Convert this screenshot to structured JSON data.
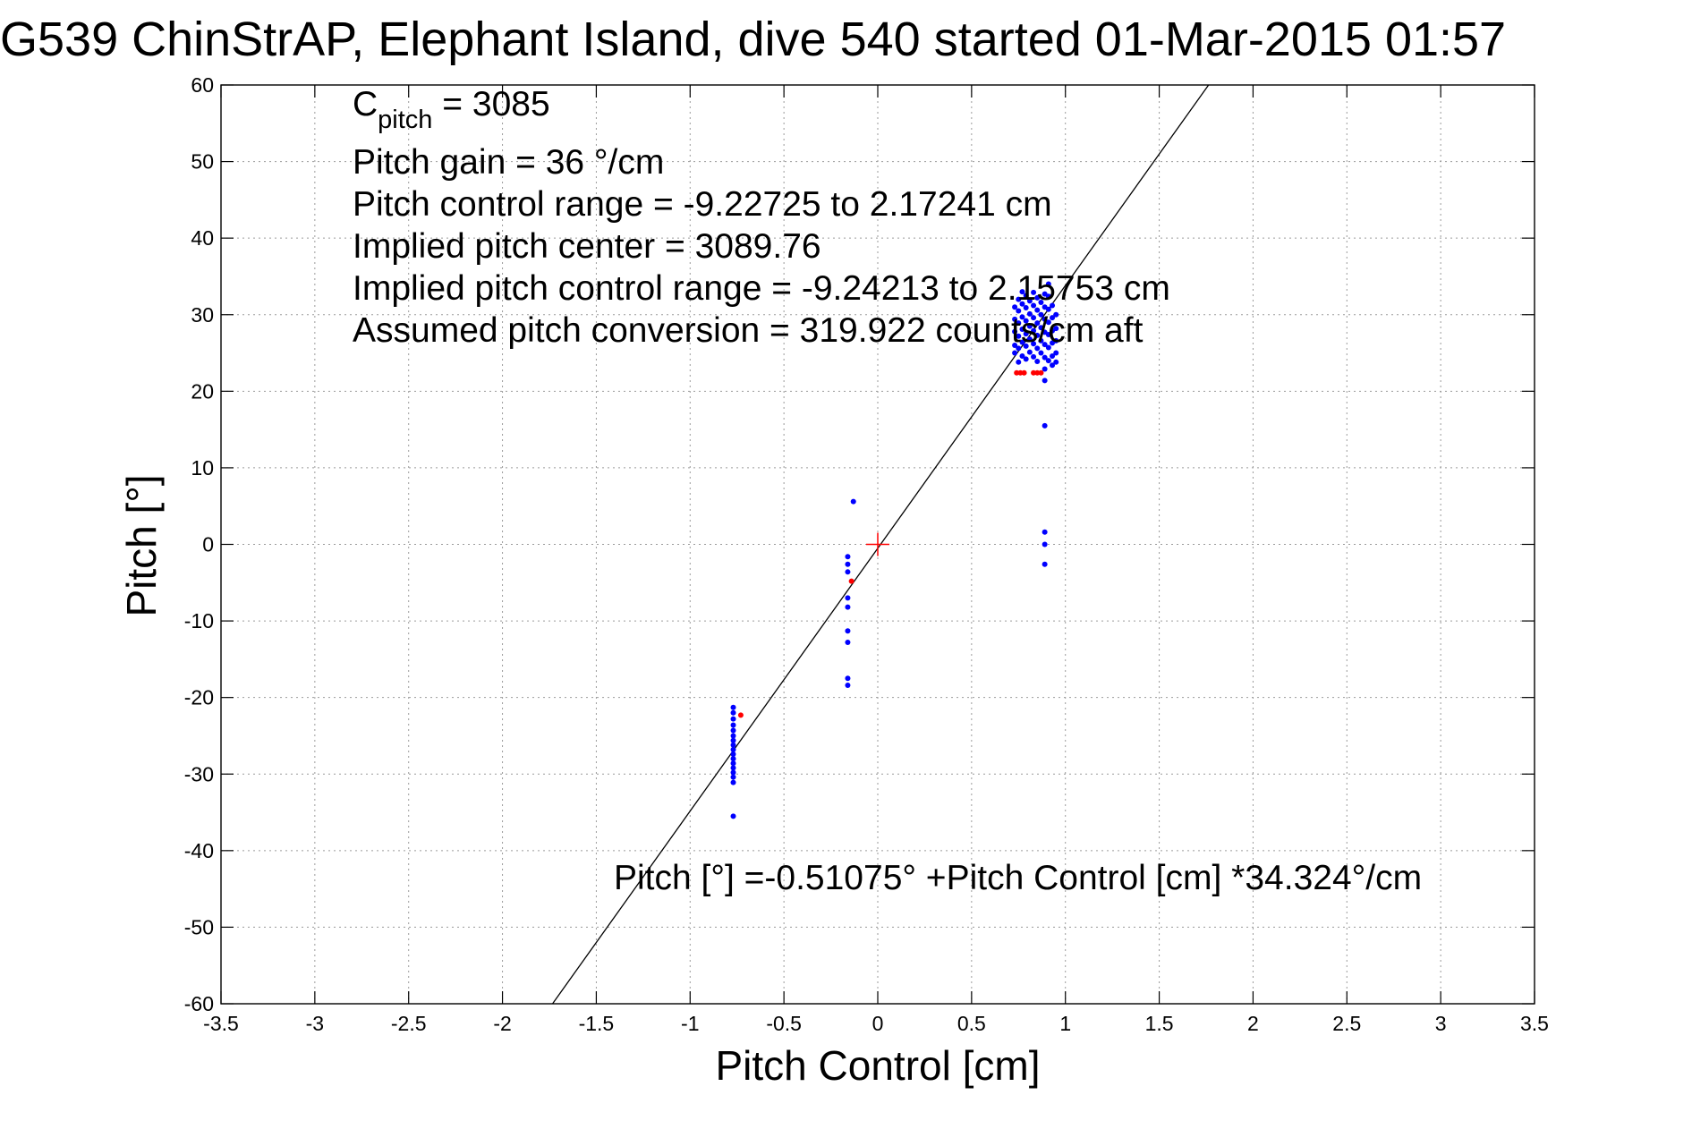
{
  "chart_data": {
    "type": "scatter",
    "title": "G539 ChinStrAP, Elephant Island, dive 540 started 01-Mar-2015 01:57",
    "xlabel": "Pitch Control [cm]",
    "ylabel": "Pitch [°]",
    "xlim": [
      -3.5,
      3.5
    ],
    "ylim": [
      -60,
      60
    ],
    "xticks": [
      -3.5,
      -3,
      -2.5,
      -2,
      -1.5,
      -1,
      -0.5,
      0,
      0.5,
      1,
      1.5,
      2,
      2.5,
      3,
      3.5
    ],
    "yticks": [
      -60,
      -50,
      -40,
      -30,
      -20,
      -10,
      0,
      10,
      20,
      30,
      40,
      50,
      60
    ],
    "grid": true,
    "annotations": {
      "c_pitch_main": "C",
      "c_pitch_sub": "pitch",
      "c_pitch_value": " = 3085",
      "pitch_gain": "Pitch gain = 36 °/cm",
      "control_range": "Pitch control range = -9.22725 to 2.17241 cm",
      "implied_center": "Implied pitch center = 3089.76",
      "implied_range": "Implied pitch control range = -9.24213 to 2.15753 cm",
      "assumed_conversion": "Assumed pitch conversion = 319.922 counts/cm aft",
      "fit_equation": "Pitch [°] =-0.51075° +Pitch Control [cm] *34.324°/cm"
    },
    "fit_line": {
      "intercept": -0.51075,
      "slope": 34.324,
      "color": "#000000"
    },
    "center_marker": {
      "x": 0,
      "y": 0,
      "color": "#ff0000"
    },
    "series": [
      {
        "color": "#0000ff",
        "points": [
          [
            -0.77,
            -21.3
          ],
          [
            -0.77,
            -22.0
          ],
          [
            -0.77,
            -22.8
          ],
          [
            -0.77,
            -23.6
          ],
          [
            -0.77,
            -24.3
          ],
          [
            -0.77,
            -25.0
          ],
          [
            -0.77,
            -25.6
          ],
          [
            -0.77,
            -26.2
          ],
          [
            -0.77,
            -26.8
          ],
          [
            -0.77,
            -27.4
          ],
          [
            -0.77,
            -28.0
          ],
          [
            -0.77,
            -28.6
          ],
          [
            -0.77,
            -29.2
          ],
          [
            -0.77,
            -29.8
          ],
          [
            -0.77,
            -30.4
          ],
          [
            -0.77,
            -31.1
          ],
          [
            -0.77,
            -35.5
          ],
          [
            -0.16,
            -1.6
          ],
          [
            -0.16,
            -2.6
          ],
          [
            -0.16,
            -3.6
          ],
          [
            -0.16,
            -7.0
          ],
          [
            -0.16,
            -8.2
          ],
          [
            -0.16,
            -11.3
          ],
          [
            -0.16,
            -12.8
          ],
          [
            -0.16,
            -17.5
          ],
          [
            -0.16,
            -18.4
          ],
          [
            -0.13,
            5.6
          ],
          [
            0.89,
            15.5
          ],
          [
            0.89,
            1.6
          ],
          [
            0.89,
            0.0
          ],
          [
            0.89,
            -2.6
          ],
          [
            0.89,
            21.4
          ],
          [
            0.73,
            31.0
          ],
          [
            0.73,
            29.4
          ],
          [
            0.73,
            27.8
          ],
          [
            0.73,
            26.0
          ],
          [
            0.73,
            25.0
          ],
          [
            0.75,
            32.0
          ],
          [
            0.75,
            30.5
          ],
          [
            0.75,
            28.9
          ],
          [
            0.75,
            27.2
          ],
          [
            0.75,
            25.6
          ],
          [
            0.75,
            23.8
          ],
          [
            0.77,
            33.0
          ],
          [
            0.77,
            31.4
          ],
          [
            0.77,
            29.7
          ],
          [
            0.77,
            28.1
          ],
          [
            0.77,
            26.4
          ],
          [
            0.77,
            24.6
          ],
          [
            0.79,
            32.5
          ],
          [
            0.79,
            30.9
          ],
          [
            0.79,
            29.2
          ],
          [
            0.79,
            27.5
          ],
          [
            0.79,
            25.9
          ],
          [
            0.79,
            24.2
          ],
          [
            0.81,
            31.8
          ],
          [
            0.81,
            30.1
          ],
          [
            0.81,
            28.5
          ],
          [
            0.81,
            26.8
          ],
          [
            0.81,
            25.1
          ],
          [
            0.83,
            32.9
          ],
          [
            0.83,
            31.2
          ],
          [
            0.83,
            29.6
          ],
          [
            0.83,
            27.9
          ],
          [
            0.83,
            26.2
          ],
          [
            0.83,
            24.5
          ],
          [
            0.85,
            32.2
          ],
          [
            0.85,
            30.6
          ],
          [
            0.85,
            28.9
          ],
          [
            0.85,
            27.3
          ],
          [
            0.85,
            25.6
          ],
          [
            0.85,
            23.9
          ],
          [
            0.87,
            31.6
          ],
          [
            0.87,
            30.0
          ],
          [
            0.87,
            28.3
          ],
          [
            0.87,
            26.6
          ],
          [
            0.87,
            25.0
          ],
          [
            0.89,
            32.7
          ],
          [
            0.89,
            31.0
          ],
          [
            0.89,
            29.4
          ],
          [
            0.89,
            27.7
          ],
          [
            0.89,
            26.1
          ],
          [
            0.89,
            24.4
          ],
          [
            0.89,
            22.9
          ],
          [
            0.91,
            34.0
          ],
          [
            0.91,
            32.4
          ],
          [
            0.91,
            30.7
          ],
          [
            0.91,
            29.0
          ],
          [
            0.91,
            27.4
          ],
          [
            0.91,
            25.7
          ],
          [
            0.91,
            24.0
          ],
          [
            0.93,
            31.2
          ],
          [
            0.93,
            29.6
          ],
          [
            0.93,
            27.9
          ],
          [
            0.93,
            26.3
          ],
          [
            0.93,
            24.6
          ],
          [
            0.93,
            23.4
          ],
          [
            0.95,
            30.0
          ],
          [
            0.95,
            28.2
          ],
          [
            0.95,
            26.6
          ],
          [
            0.95,
            25.0
          ],
          [
            0.95,
            23.8
          ]
        ]
      },
      {
        "color": "#ff0000",
        "points": [
          [
            -0.73,
            -22.3
          ],
          [
            -0.14,
            -4.8
          ],
          [
            0.74,
            22.4
          ],
          [
            0.76,
            22.4
          ],
          [
            0.78,
            22.4
          ],
          [
            0.83,
            22.4
          ],
          [
            0.85,
            22.4
          ],
          [
            0.87,
            22.4
          ]
        ]
      }
    ]
  }
}
